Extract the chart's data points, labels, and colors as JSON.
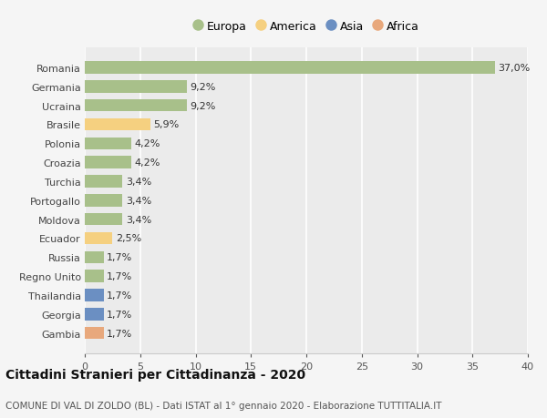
{
  "categories": [
    "Romania",
    "Germania",
    "Ucraina",
    "Brasile",
    "Polonia",
    "Croazia",
    "Turchia",
    "Portogallo",
    "Moldova",
    "Ecuador",
    "Russia",
    "Regno Unito",
    "Thailandia",
    "Georgia",
    "Gambia"
  ],
  "values": [
    37.0,
    9.2,
    9.2,
    5.9,
    4.2,
    4.2,
    3.4,
    3.4,
    3.4,
    2.5,
    1.7,
    1.7,
    1.7,
    1.7,
    1.7
  ],
  "continents": [
    "Europa",
    "Europa",
    "Europa",
    "America",
    "Europa",
    "Europa",
    "Europa",
    "Europa",
    "Europa",
    "America",
    "Europa",
    "Europa",
    "Asia",
    "Asia",
    "Africa"
  ],
  "continent_colors": {
    "Europa": "#a8c08a",
    "America": "#f5d080",
    "Asia": "#6b8fc2",
    "Africa": "#e8a87c"
  },
  "legend_order": [
    "Europa",
    "America",
    "Asia",
    "Africa"
  ],
  "title": "Cittadini Stranieri per Cittadinanza - 2020",
  "subtitle": "COMUNE DI VAL DI ZOLDO (BL) - Dati ISTAT al 1° gennaio 2020 - Elaborazione TUTTITALIA.IT",
  "xlim": [
    0,
    40
  ],
  "xticks": [
    0,
    5,
    10,
    15,
    20,
    25,
    30,
    35,
    40
  ],
  "background_color": "#f5f5f5",
  "plot_bg_color": "#ebebeb",
  "grid_color": "#ffffff",
  "label_fontsize": 8,
  "tick_fontsize": 8,
  "title_fontsize": 10,
  "subtitle_fontsize": 7.5,
  "legend_fontsize": 9
}
